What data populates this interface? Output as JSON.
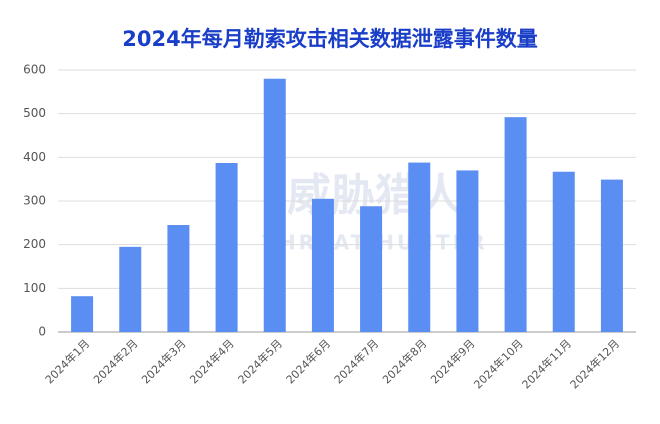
{
  "chart_data": {
    "type": "bar",
    "title": "2024年每月勒索攻击相关数据泄露事件数量",
    "watermark": "威胁猎人",
    "watermark_subtitle": "THREAT HUNTER",
    "categories": [
      "2024年1月",
      "2024年2月",
      "2024年3月",
      "2024年4月",
      "2024年5月",
      "2024年6月",
      "2024年7月",
      "2024年8月",
      "2024年9月",
      "2024年10月",
      "2024年11月",
      "2024年12月"
    ],
    "values": [
      82,
      195,
      245,
      387,
      580,
      305,
      288,
      388,
      370,
      492,
      367,
      349
    ],
    "color": "#5b8ef2",
    "ylim": [
      0,
      600
    ],
    "yticks": [
      0,
      100,
      200,
      300,
      400,
      500,
      600
    ],
    "grid": true
  }
}
